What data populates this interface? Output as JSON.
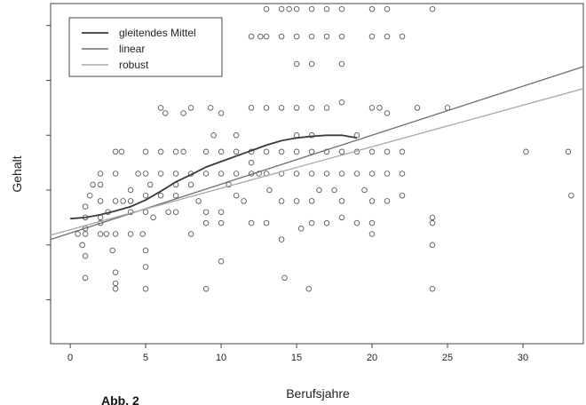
{
  "caption": "Abb. 2",
  "chart_data": {
    "type": "scatter",
    "title": "",
    "xlabel": "Berufsjahre",
    "ylabel": "Gehalt",
    "xlim": [
      -1.3,
      34
    ],
    "ylim": [
      0.2,
      6.4
    ],
    "xticks": [
      0,
      5,
      10,
      15,
      20,
      25,
      30
    ],
    "yticks": [
      1,
      2,
      3,
      4,
      5,
      6
    ],
    "ytick_labels_shown": false,
    "grid": false,
    "legend_position": "top-left",
    "colors": {
      "points": "#5a5a5a",
      "gleitendes_mittel": "#3a3a3a",
      "linear": "#6e6e6e",
      "robust": "#a8a8a8",
      "axis": "#444444"
    },
    "points": [
      [
        1,
        2.2
      ],
      [
        1,
        2.3
      ],
      [
        1,
        2.5
      ],
      [
        1,
        2.7
      ],
      [
        1,
        1.8
      ],
      [
        1,
        1.4
      ],
      [
        0.5,
        2.2
      ],
      [
        0.8,
        2.0
      ],
      [
        1.3,
        2.9
      ],
      [
        1.5,
        3.1
      ],
      [
        2,
        2.2
      ],
      [
        2,
        2.4
      ],
      [
        2,
        2.5
      ],
      [
        2,
        3.3
      ],
      [
        2,
        3.1
      ],
      [
        2,
        2.8
      ],
      [
        2.4,
        2.2
      ],
      [
        2.5,
        2.6
      ],
      [
        2.8,
        1.9
      ],
      [
        3,
        3.7
      ],
      [
        3,
        3.3
      ],
      [
        3,
        2.8
      ],
      [
        3,
        2.2
      ],
      [
        3,
        1.5
      ],
      [
        3,
        1.3
      ],
      [
        3,
        1.2
      ],
      [
        3.4,
        3.7
      ],
      [
        3.5,
        2.8
      ],
      [
        4,
        3.0
      ],
      [
        4,
        2.8
      ],
      [
        4,
        2.2
      ],
      [
        4,
        2.6
      ],
      [
        4.5,
        3.3
      ],
      [
        4.8,
        2.2
      ],
      [
        5,
        3.7
      ],
      [
        5,
        3.3
      ],
      [
        5,
        2.9
      ],
      [
        5,
        2.6
      ],
      [
        5,
        1.9
      ],
      [
        5,
        1.6
      ],
      [
        5,
        1.2
      ],
      [
        5.3,
        3.1
      ],
      [
        5.5,
        2.5
      ],
      [
        6,
        3.7
      ],
      [
        6,
        3.3
      ],
      [
        6,
        4.5
      ],
      [
        6,
        2.9
      ],
      [
        6.3,
        4.4
      ],
      [
        6.5,
        2.6
      ],
      [
        7,
        3.7
      ],
      [
        7,
        3.3
      ],
      [
        7,
        3.1
      ],
      [
        7,
        2.9
      ],
      [
        7,
        2.6
      ],
      [
        7.5,
        4.4
      ],
      [
        7.5,
        3.7
      ],
      [
        8,
        4.5
      ],
      [
        8,
        3.3
      ],
      [
        8,
        3.1
      ],
      [
        8,
        2.2
      ],
      [
        8.5,
        2.8
      ],
      [
        9,
        5.8
      ],
      [
        9,
        3.7
      ],
      [
        9,
        3.3
      ],
      [
        9,
        2.6
      ],
      [
        9,
        2.4
      ],
      [
        9,
        1.2
      ],
      [
        9.3,
        4.5
      ],
      [
        9.5,
        4.0
      ],
      [
        10,
        3.7
      ],
      [
        10,
        3.3
      ],
      [
        10,
        2.6
      ],
      [
        10,
        2.4
      ],
      [
        10,
        1.7
      ],
      [
        10,
        4.4
      ],
      [
        10.5,
        3.1
      ],
      [
        11,
        3.7
      ],
      [
        11,
        3.3
      ],
      [
        11,
        2.9
      ],
      [
        11,
        4.0
      ],
      [
        11.5,
        2.8
      ],
      [
        12,
        5.8
      ],
      [
        12,
        4.5
      ],
      [
        12,
        3.7
      ],
      [
        12,
        3.3
      ],
      [
        12,
        2.4
      ],
      [
        12,
        3.5
      ],
      [
        12.5,
        3.3
      ],
      [
        12.6,
        5.8
      ],
      [
        13,
        6.3
      ],
      [
        13,
        5.8
      ],
      [
        13,
        4.5
      ],
      [
        13,
        3.7
      ],
      [
        13,
        3.3
      ],
      [
        13,
        2.4
      ],
      [
        13.2,
        3.0
      ],
      [
        14,
        6.3
      ],
      [
        14,
        5.8
      ],
      [
        14,
        4.5
      ],
      [
        14,
        3.7
      ],
      [
        14,
        3.3
      ],
      [
        14,
        2.8
      ],
      [
        14,
        2.1
      ],
      [
        14.2,
        1.4
      ],
      [
        14.5,
        6.3
      ],
      [
        15,
        6.3
      ],
      [
        15,
        5.8
      ],
      [
        15,
        5.3
      ],
      [
        15,
        4.5
      ],
      [
        15,
        4.0
      ],
      [
        15,
        3.7
      ],
      [
        15,
        3.3
      ],
      [
        15,
        2.8
      ],
      [
        15.3,
        2.3
      ],
      [
        15.8,
        1.2
      ],
      [
        16,
        6.3
      ],
      [
        16,
        5.8
      ],
      [
        16,
        5.3
      ],
      [
        16,
        4.5
      ],
      [
        16,
        4.0
      ],
      [
        16,
        3.7
      ],
      [
        16,
        3.3
      ],
      [
        16,
        2.8
      ],
      [
        16,
        2.4
      ],
      [
        16.5,
        3.0
      ],
      [
        17,
        6.3
      ],
      [
        17,
        5.8
      ],
      [
        17,
        4.5
      ],
      [
        17,
        3.7
      ],
      [
        17,
        3.3
      ],
      [
        17,
        2.4
      ],
      [
        17.5,
        3.0
      ],
      [
        18,
        6.3
      ],
      [
        18,
        5.8
      ],
      [
        18,
        5.3
      ],
      [
        18,
        4.6
      ],
      [
        18,
        3.7
      ],
      [
        18,
        3.3
      ],
      [
        18,
        2.8
      ],
      [
        18,
        2.5
      ],
      [
        19,
        4.0
      ],
      [
        19,
        3.7
      ],
      [
        19,
        3.3
      ],
      [
        19,
        2.4
      ],
      [
        19.5,
        3.0
      ],
      [
        20,
        6.3
      ],
      [
        20,
        5.8
      ],
      [
        20,
        4.5
      ],
      [
        20,
        3.7
      ],
      [
        20,
        3.3
      ],
      [
        20,
        2.8
      ],
      [
        20,
        2.4
      ],
      [
        20,
        2.2
      ],
      [
        20.5,
        4.5
      ],
      [
        21,
        6.3
      ],
      [
        21,
        5.8
      ],
      [
        21,
        4.4
      ],
      [
        21,
        3.7
      ],
      [
        21,
        3.3
      ],
      [
        21,
        2.8
      ],
      [
        22,
        5.8
      ],
      [
        22,
        3.7
      ],
      [
        22,
        3.3
      ],
      [
        22,
        2.9
      ],
      [
        23,
        4.5
      ],
      [
        24,
        6.3
      ],
      [
        24,
        2.5
      ],
      [
        24,
        2.4
      ],
      [
        24,
        2.0
      ],
      [
        24,
        1.2
      ],
      [
        25,
        4.5
      ],
      [
        30.2,
        3.7
      ],
      [
        33,
        3.7
      ],
      [
        33.2,
        2.9
      ]
    ],
    "series": [
      {
        "name": "gleitendes Mittel",
        "type": "line",
        "x": [
          0,
          1,
          2,
          3,
          4,
          5,
          6,
          7,
          8,
          9,
          10,
          11,
          12,
          13,
          14,
          15,
          16,
          17,
          18,
          19
        ],
        "y": [
          2.48,
          2.5,
          2.55,
          2.62,
          2.7,
          2.82,
          2.98,
          3.15,
          3.28,
          3.42,
          3.52,
          3.62,
          3.72,
          3.82,
          3.9,
          3.95,
          3.98,
          4.0,
          4.0,
          3.95
        ]
      },
      {
        "name": "linear",
        "type": "line",
        "x": [
          -1.3,
          34
        ],
        "y": [
          2.1,
          5.25
        ]
      },
      {
        "name": "robust",
        "type": "line",
        "x": [
          -1.3,
          34
        ],
        "y": [
          2.18,
          4.85
        ]
      }
    ]
  }
}
